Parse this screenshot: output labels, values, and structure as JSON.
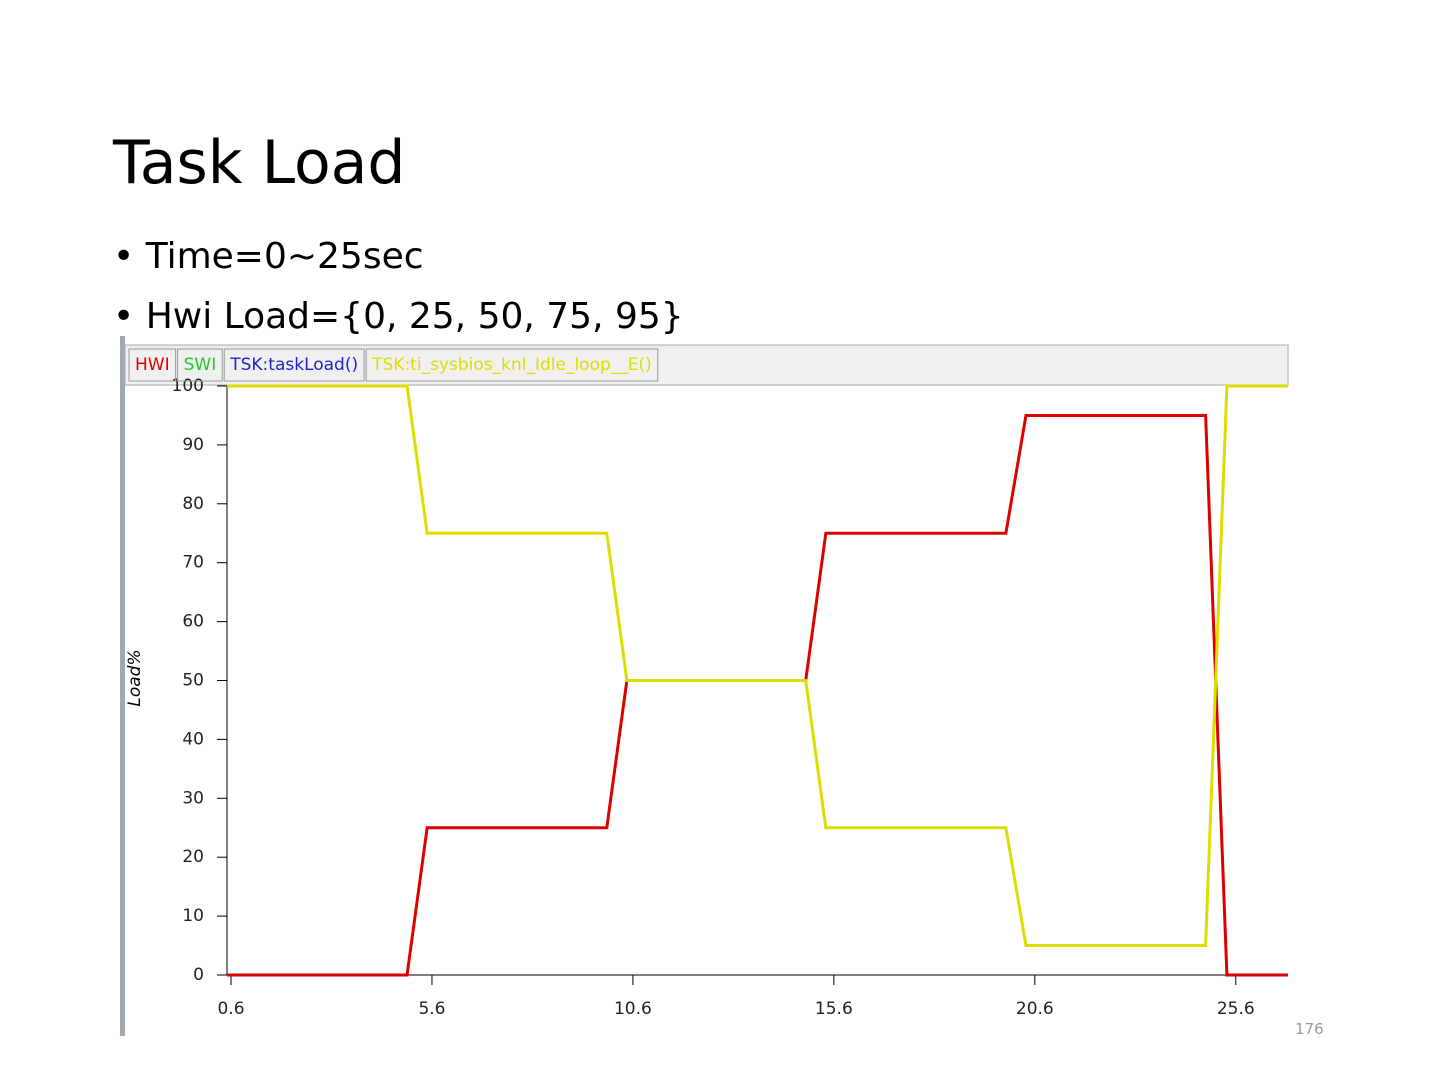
{
  "title": "Task Load",
  "bullets": [
    "Time=0~25sec",
    "Hwi Load={0, 25, 50, 75, 95}"
  ],
  "page_number": "176",
  "chart_data": {
    "type": "line",
    "y_label": "Load%",
    "x": [
      0.5,
      4.98,
      5.48,
      9.95,
      10.45,
      14.9,
      15.4,
      19.88,
      20.38,
      24.85,
      25.38,
      26.9
    ],
    "series": [
      {
        "name": "HWI",
        "color": "#dd0000",
        "values": [
          0,
          0,
          25,
          25,
          50,
          50,
          75,
          75,
          95,
          95,
          0,
          0
        ]
      },
      {
        "name": "SWI",
        "color": "#22cc22"
      },
      {
        "name": "TSK:taskLoad()",
        "color": "#2222cc"
      },
      {
        "name": "TSK:ti_sysbios_knl_Idle_loop__E()",
        "color": "#dddd00",
        "values": [
          100,
          100,
          75,
          75,
          50,
          50,
          25,
          25,
          5,
          5,
          100,
          100
        ]
      }
    ],
    "xlim": [
      0.5,
      26.9
    ],
    "xticks": [
      0.6,
      5.6,
      10.6,
      15.6,
      20.6,
      25.6
    ],
    "ylim": [
      0,
      100
    ],
    "yticks": [
      0,
      10,
      20,
      30,
      40,
      50,
      60,
      70,
      80,
      90,
      100
    ]
  }
}
